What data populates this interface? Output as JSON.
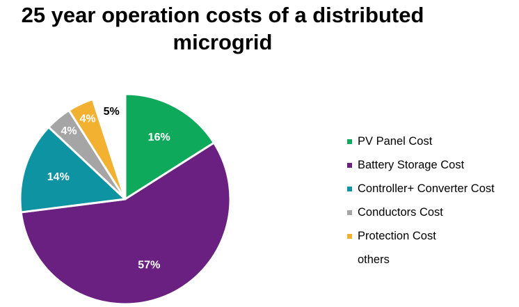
{
  "chart_data": {
    "type": "pie",
    "title": "25 year operation costs of a distributed microgrid",
    "title_lines": [
      "25 year operation costs of a distributed",
      "microgrid"
    ],
    "slices": [
      {
        "name": "PV Panel Cost",
        "value": 16,
        "label": "16%",
        "color": "#0fa95c",
        "label_color": "#ffffff"
      },
      {
        "name": "Battery Storage Cost",
        "value": 57,
        "label": "57%",
        "color": "#6a2080",
        "label_color": "#ffffff"
      },
      {
        "name": "Controller+ Converter Cost",
        "value": 14,
        "label": "14%",
        "color": "#0e93a3",
        "label_color": "#ffffff"
      },
      {
        "name": "Conductors Cost",
        "value": 4,
        "label": "4%",
        "color": "#a5a5a5",
        "label_color": "#ffffff"
      },
      {
        "name": "Protection Cost",
        "value": 4,
        "label": "4%",
        "color": "#f2b131",
        "label_color": "#ffffff"
      },
      {
        "name": "others",
        "value": 5,
        "label": "5%",
        "color": "#ffffff",
        "label_color": "#000000"
      }
    ],
    "legend_position": "right"
  }
}
